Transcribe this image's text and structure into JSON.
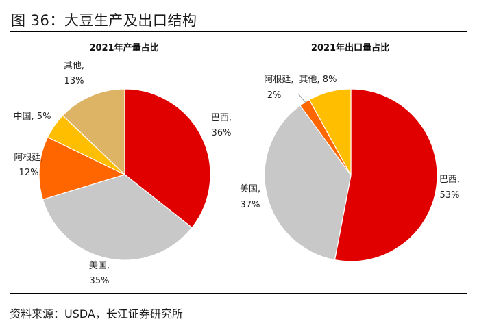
{
  "figure": {
    "title": "图 36：大豆生产及出口结构",
    "source": "资料来源：USDA，长江证券研究所"
  },
  "chart_data": [
    {
      "type": "pie",
      "title": "2021年产量占比",
      "slices": [
        {
          "name": "巴西",
          "value": 36,
          "label_name": "巴西,",
          "label_value": "36%",
          "color": "#e00000"
        },
        {
          "name": "美国",
          "value": 35,
          "label_name": "美国,",
          "label_value": "35%",
          "color": "#c8c8c8"
        },
        {
          "name": "阿根廷",
          "value": 12,
          "label_name": "阿根廷,",
          "label_value": "12%",
          "color": "#ff6600"
        },
        {
          "name": "中国",
          "value": 5,
          "label_name": "中国, 5%",
          "label_value": "",
          "color": "#ffbf00"
        },
        {
          "name": "其他",
          "value": 13,
          "label_name": "其他,",
          "label_value": "13%",
          "color": "#ddb366"
        }
      ]
    },
    {
      "type": "pie",
      "title": "2021年出口量占比",
      "slices": [
        {
          "name": "巴西",
          "value": 53,
          "label_name": "巴西,",
          "label_value": "53%",
          "color": "#e00000"
        },
        {
          "name": "美国",
          "value": 37,
          "label_name": "美国,",
          "label_value": "37%",
          "color": "#c8c8c8"
        },
        {
          "name": "阿根廷",
          "value": 2,
          "label_name": "阿根廷,",
          "label_value": "2%",
          "color": "#ff6600"
        },
        {
          "name": "其他",
          "value": 8,
          "label_name": "其他, 8%",
          "label_value": "",
          "color": "#ffbf00"
        }
      ]
    }
  ]
}
